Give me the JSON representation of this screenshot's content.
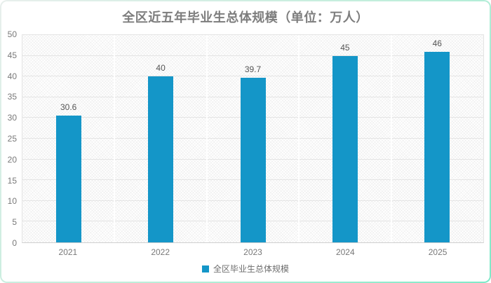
{
  "chart_data": {
    "type": "bar",
    "title": "全区近五年毕业生总体规模（单位：万人）",
    "categories": [
      "2021",
      "2022",
      "2023",
      "2024",
      "2025"
    ],
    "series": [
      {
        "name": "全区毕业生总体规模",
        "values": [
          30.6,
          40,
          39.7,
          45,
          46
        ]
      }
    ],
    "value_labels": [
      "30.6",
      "40",
      "39.7",
      "45",
      "46"
    ],
    "ylim": [
      0,
      50
    ],
    "ytick_step": 5,
    "grid": true,
    "legend_position": "bottom",
    "colors": {
      "bar": "#1496c8",
      "frame_border_start": "#e8efec",
      "frame_border_end": "#7fe9c8",
      "title_text": "#7d7d7d",
      "axis_text": "#787878",
      "value_text": "#555555"
    }
  }
}
